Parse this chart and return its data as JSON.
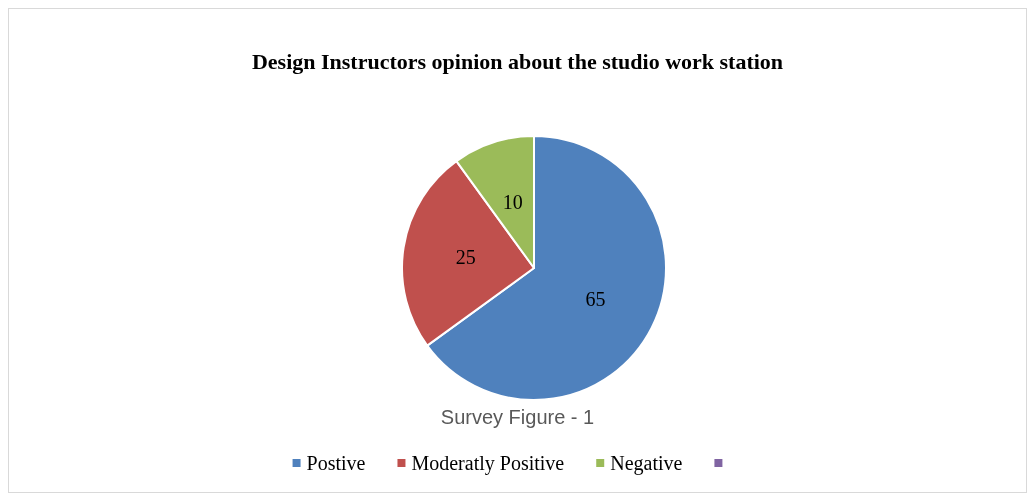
{
  "chart_data": {
    "type": "pie",
    "title": "Design Instructors opinion about the studio work station",
    "categories": [
      "Postive",
      "Moderatly Positive",
      "Negative",
      null
    ],
    "values": [
      65,
      25,
      10,
      0
    ],
    "colors": [
      "#4f81bd",
      "#c0504d",
      "#9bbb59",
      "#8064a2"
    ],
    "value_labels": [
      "65",
      "25",
      "10",
      null
    ],
    "annotations": [
      "Survey Figure - 1"
    ],
    "legend": "bottom"
  }
}
